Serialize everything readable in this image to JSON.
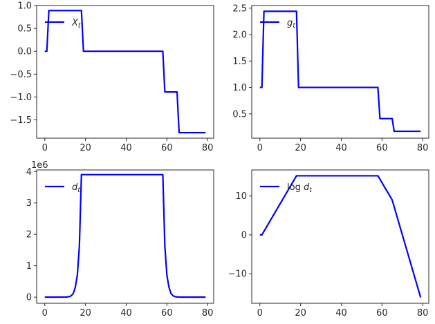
{
  "chart_data": [
    {
      "type": "line",
      "panel": "top-left",
      "xlim": [
        -4,
        83
      ],
      "ylim": [
        -1.9,
        1.0
      ],
      "xticks": [
        0,
        20,
        40,
        60,
        80
      ],
      "yticks": [
        -1.5,
        -1.0,
        -0.5,
        0.0,
        0.5,
        1.0
      ],
      "ytick_labels": [
        "−1.5",
        "−1.0",
        "−0.5",
        "0.0",
        "0.5",
        "1.0"
      ],
      "offset_text": "",
      "legend": {
        "placement": "top-left",
        "label_main": "X",
        "label_sub": "t",
        "label_prefix": ""
      },
      "series": [
        {
          "name": "X_t",
          "color": "#0000ff",
          "x": [
            0,
            1,
            2,
            18,
            19,
            58,
            59,
            65,
            66,
            79
          ],
          "y": [
            0,
            0,
            0.89,
            0.89,
            0,
            0,
            -0.89,
            -0.89,
            -1.78,
            -1.78
          ]
        }
      ]
    },
    {
      "type": "line",
      "panel": "top-right",
      "xlim": [
        -4,
        83
      ],
      "ylim": [
        0.04,
        2.55
      ],
      "xticks": [
        0,
        20,
        40,
        60,
        80
      ],
      "yticks": [
        0.5,
        1.0,
        1.5,
        2.0,
        2.5
      ],
      "ytick_labels": [
        "0.5",
        "1.0",
        "1.5",
        "2.0",
        "2.5"
      ],
      "offset_text": "",
      "legend": {
        "placement": "top-left",
        "label_main": "g",
        "label_sub": "t",
        "label_prefix": ""
      },
      "series": [
        {
          "name": "g_t",
          "color": "#0000ff",
          "x": [
            0,
            1,
            2,
            18,
            19,
            58,
            59,
            65,
            66,
            79
          ],
          "y": [
            1.0,
            1.0,
            2.44,
            2.44,
            1.0,
            1.0,
            0.41,
            0.41,
            0.17,
            0.17
          ]
        }
      ]
    },
    {
      "type": "line",
      "panel": "bottom-left",
      "xlim": [
        -4,
        83
      ],
      "ylim": [
        -0.195,
        4.05
      ],
      "xticks": [
        0,
        20,
        40,
        60,
        80
      ],
      "yticks": [
        0,
        1,
        2,
        3,
        4
      ],
      "ytick_labels": [
        "0",
        "1",
        "2",
        "3",
        "4"
      ],
      "offset_text": "1e6",
      "legend": {
        "placement": "top-left",
        "label_main": "d",
        "label_sub": "t",
        "label_prefix": ""
      },
      "series": [
        {
          "name": "d_t",
          "color": "#0000ff",
          "x": [
            0,
            1,
            2,
            10,
            11,
            12,
            13,
            14,
            15,
            16,
            17,
            18,
            58,
            59,
            60,
            61,
            62,
            63,
            64,
            65,
            66,
            67,
            68,
            69,
            70,
            79
          ],
          "y": [
            0,
            0,
            0.0002,
            0.0023,
            0.006,
            0.016,
            0.045,
            0.12,
            0.32,
            0.7,
            1.62,
            3.9,
            3.9,
            1.62,
            0.7,
            0.32,
            0.12,
            0.045,
            0.016,
            0.006,
            0.0023,
            0.0009,
            0.0004,
            0.0002,
            0.0001,
            0
          ]
        }
      ]
    },
    {
      "type": "line",
      "panel": "bottom-right",
      "xlim": [
        -4,
        83
      ],
      "ylim": [
        -17.6,
        16.7
      ],
      "xticks": [
        0,
        20,
        40,
        60,
        80
      ],
      "yticks": [
        -10,
        0,
        10
      ],
      "ytick_labels": [
        "−10",
        "0",
        "10"
      ],
      "offset_text": "",
      "legend": {
        "placement": "top-left",
        "label_main": "d",
        "label_sub": "t",
        "label_prefix": "log "
      },
      "series": [
        {
          "name": "log d_t",
          "color": "#0000ff",
          "x": [
            0,
            1,
            18,
            58,
            65,
            79
          ],
          "y": [
            0,
            0,
            15.2,
            15.2,
            9.0,
            -16.1
          ]
        }
      ]
    }
  ]
}
